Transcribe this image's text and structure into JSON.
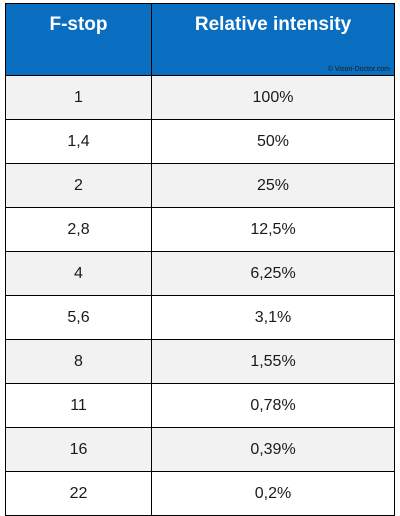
{
  "header": {
    "col1": "F-stop",
    "col2": "Relative intensity",
    "copyright": "© Vison-Doctor.com"
  },
  "rows": [
    {
      "fstop": "1",
      "intensity": "100%"
    },
    {
      "fstop": "1,4",
      "intensity": "50%"
    },
    {
      "fstop": "2",
      "intensity": "25%"
    },
    {
      "fstop": "2,8",
      "intensity": "12,5%"
    },
    {
      "fstop": "4",
      "intensity": "6,25%"
    },
    {
      "fstop": "5,6",
      "intensity": "3,1%"
    },
    {
      "fstop": "8",
      "intensity": "1,55%"
    },
    {
      "fstop": "11",
      "intensity": "0,78%"
    },
    {
      "fstop": "16",
      "intensity": "0,39%"
    },
    {
      "fstop": "22",
      "intensity": "0,2%"
    }
  ],
  "colors": {
    "header_bg": "#0a6ec0",
    "row_alt": "#f2f2f2"
  }
}
